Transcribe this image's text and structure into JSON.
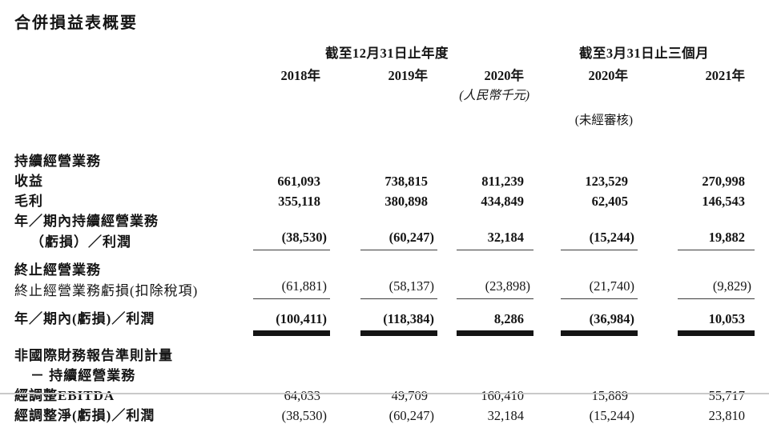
{
  "title": "合併損益表概要",
  "table": {
    "col_groups": [
      {
        "label": "截至12月31日止年度",
        "span": 3
      },
      {
        "label": "截至3月31日止三個月",
        "span": 2
      }
    ],
    "years": [
      "2018年",
      "2019年",
      "2020年",
      "2020年",
      "2021年"
    ],
    "unit_note": "(人民幣千元)",
    "unit_note_col": 3,
    "audit_note": "(未經審核)",
    "audit_note_col": 4,
    "rows": [
      {
        "label": "持續經營業務",
        "indent": false,
        "label_bold": true,
        "values": null,
        "values_bold": false,
        "rule": "none",
        "gap": "lg"
      },
      {
        "label": "收益",
        "indent": false,
        "label_bold": true,
        "values": [
          "661,093",
          "738,815",
          "811,239",
          "123,529",
          "270,998"
        ],
        "values_bold": true,
        "rule": "none",
        "gap": "none"
      },
      {
        "label": "毛利",
        "indent": false,
        "label_bold": true,
        "values": [
          "355,118",
          "380,898",
          "434,849",
          "62,405",
          "146,543"
        ],
        "values_bold": true,
        "rule": "none",
        "gap": "none"
      },
      {
        "label": "年／期內持續經營業務",
        "indent": false,
        "label_bold": true,
        "values": null,
        "values_bold": false,
        "rule": "none",
        "gap": "none"
      },
      {
        "label": "（虧損）／利潤",
        "indent": true,
        "label_bold": true,
        "values": [
          "(38,530)",
          "(60,247)",
          "32,184",
          "(15,244)",
          "19,882"
        ],
        "values_bold": true,
        "rule": "single",
        "gap": "none"
      },
      {
        "label": "終止經營業務",
        "indent": false,
        "label_bold": true,
        "values": null,
        "values_bold": false,
        "rule": "none",
        "gap": "sm"
      },
      {
        "label": "終止經營業務虧損(扣除稅項)",
        "indent": false,
        "label_bold": false,
        "values": [
          "(61,881)",
          "(58,137)",
          "(23,898)",
          "(21,740)",
          "(9,829)"
        ],
        "values_bold": false,
        "rule": "single",
        "gap": "none"
      },
      {
        "label": "年／期內(虧損)／利潤",
        "indent": false,
        "label_bold": true,
        "values": [
          "(100,411)",
          "(118,384)",
          "8,286",
          "(36,984)",
          "10,053"
        ],
        "values_bold": true,
        "rule": "double",
        "gap": "sm"
      },
      {
        "label": "非國際財務報告準則計量",
        "indent": false,
        "label_bold": true,
        "values": null,
        "values_bold": false,
        "rule": "none",
        "gap": "sm"
      },
      {
        "label": "－ 持續經營業務",
        "indent": true,
        "label_bold": true,
        "values": null,
        "values_bold": false,
        "rule": "none",
        "gap": "none"
      },
      {
        "label": "經調整EBITDA",
        "indent": false,
        "label_bold": true,
        "values": [
          "64,033",
          "49,709",
          "160,410",
          "15,889",
          "55,717"
        ],
        "values_bold": false,
        "rule": "none",
        "gap": "none"
      },
      {
        "label": "經調整淨(虧損)／利潤",
        "indent": false,
        "label_bold": true,
        "values": [
          "(38,530)",
          "(60,247)",
          "32,184",
          "(15,244)",
          "23,810"
        ],
        "values_bold": false,
        "rule": "none",
        "gap": "none"
      }
    ]
  }
}
